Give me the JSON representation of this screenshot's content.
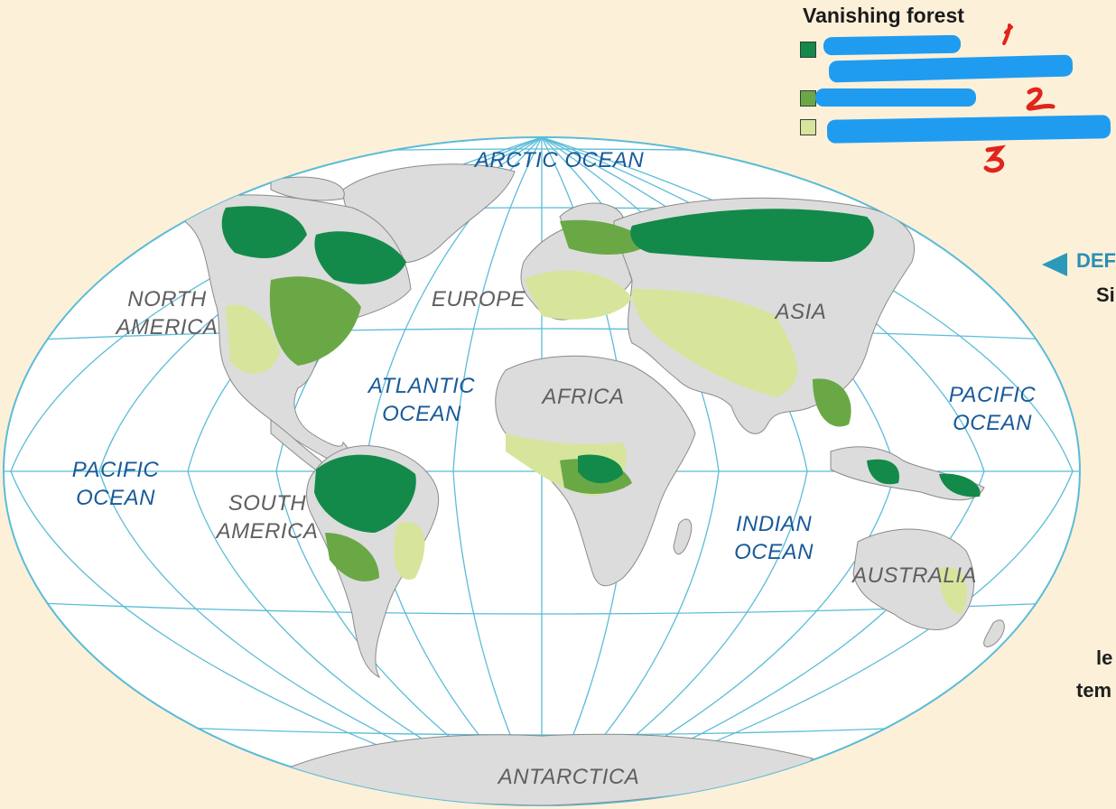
{
  "legend": {
    "title": "Vanishing forest",
    "items": [
      {
        "color": "#138a4a",
        "label_visible": false
      },
      {
        "color": "#6aa846",
        "label_visible": false
      },
      {
        "color": "#d6e59b",
        "label_visible": false
      }
    ],
    "annotations": [
      "1",
      "2",
      "3"
    ]
  },
  "map": {
    "projection": "winkel-tripel-like oval",
    "ocean_color": "#ffffff",
    "graticule_color": "#5bbcd8",
    "land_color": "#dcdcdc",
    "oceans": [
      {
        "id": "arctic",
        "text": "ARCTIC  OCEAN"
      },
      {
        "id": "atlantic",
        "lines": [
          "ATLANTIC",
          "OCEAN"
        ]
      },
      {
        "id": "pacific-west",
        "lines": [
          "PACIFIC",
          "OCEAN"
        ]
      },
      {
        "id": "pacific-east",
        "lines": [
          "PACIFIC",
          "OCEAN"
        ]
      },
      {
        "id": "indian",
        "lines": [
          "INDIAN",
          "OCEAN"
        ]
      }
    ],
    "continents": [
      {
        "id": "north-america",
        "lines": [
          "NORTH",
          "AMERICA"
        ]
      },
      {
        "id": "south-america",
        "lines": [
          "SOUTH",
          "AMERICA"
        ]
      },
      {
        "id": "europe",
        "text": "EUROPE"
      },
      {
        "id": "africa",
        "text": "AFRICA"
      },
      {
        "id": "asia",
        "text": "ASIA"
      },
      {
        "id": "australia",
        "text": "AUSTRALIA"
      },
      {
        "id": "antarctica",
        "text": "ANTARCTICA"
      }
    ]
  },
  "side_panel": {
    "def_label": "DEF",
    "fragments": [
      "Si",
      "le",
      "tem"
    ]
  }
}
